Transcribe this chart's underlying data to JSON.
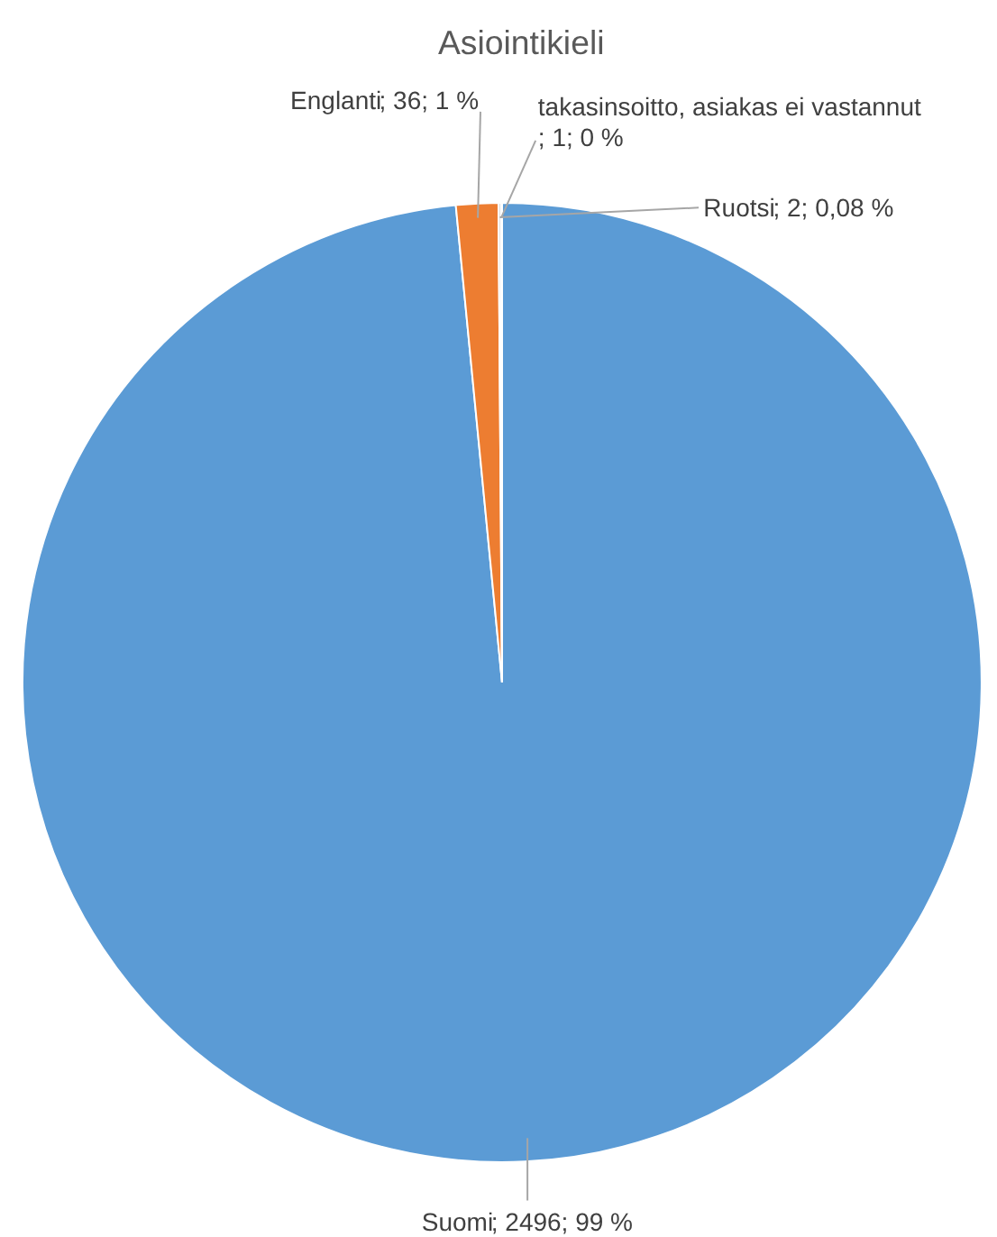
{
  "chart_data": {
    "type": "pie",
    "title": "Asiointikieli",
    "categories": [
      "Suomi",
      "Englanti",
      "Ruotsi",
      "takasinsoitto, asiakas ei vastannut"
    ],
    "values": [
      2496,
      36,
      2,
      1
    ],
    "colors": [
      "#5b9bd5",
      "#ed7d31",
      "#a5a5a5",
      "#ffc000"
    ],
    "value_labels": [
      "; 2496; 99 %",
      "; 36; 1 %",
      "; 2; 0,08 %",
      "; 1; 0 %"
    ]
  }
}
